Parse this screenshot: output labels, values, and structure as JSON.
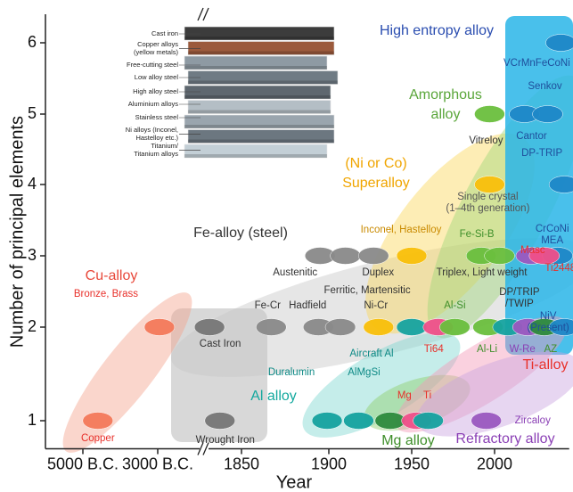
{
  "chart_data": {
    "type": "timeline-bubble",
    "xlabel": "Year",
    "ylabel": "Number of principal elements",
    "xlim": [
      -6000,
      2045
    ],
    "ylim": [
      0.7,
      6.4
    ],
    "xticks": [
      {
        "value": -5000,
        "label": "5000 B.C."
      },
      {
        "value": -3000,
        "label": "3000 B.C."
      },
      1850,
      1900,
      1950,
      2000
    ],
    "yticks": [
      1,
      2,
      3,
      4,
      5,
      6
    ],
    "groups": [
      {
        "name": [
          "Cu-alloy"
        ],
        "color": "#f4a58f",
        "label_color": "#e8483a"
      },
      {
        "name": [
          "Fe-alloy (steel)"
        ],
        "color": "#c8c8c8",
        "label_color": "#333333"
      },
      {
        "name": [
          "(Ni or Co)",
          "Superalloy"
        ],
        "color": "#fbd75a",
        "label_color": "#f0a500"
      },
      {
        "name": [
          "Amorphous",
          "alloy"
        ],
        "color": "#9fd67a",
        "label_color": "#5aa63a"
      },
      {
        "name": [
          "High entropy alloy"
        ],
        "color": "#29b5e8",
        "label_color": "#2a4db0"
      },
      {
        "name": [
          "Al alloy"
        ],
        "color": "#7fd6d0",
        "label_color": "#13a89e"
      },
      {
        "name": [
          "Mg alloy"
        ],
        "color": "#8fcf6a",
        "label_color": "#3f8f2a"
      },
      {
        "name": [
          "Ti-alloy"
        ],
        "color": "#f59ab8",
        "label_color": "#e8302a"
      },
      {
        "name": [
          "Refractory alloy"
        ],
        "color": "#c9a3e0",
        "label_color": "#8a3fb5"
      }
    ],
    "points": [
      {
        "x": -4600,
        "y": 1,
        "color": "#f47a5b",
        "label": "Copper",
        "label_color": "#e8302a"
      },
      {
        "x": -2900,
        "y": 2,
        "color": "#f47a5b",
        "label": "Bronze, Brass",
        "label_color": "#e8302a"
      },
      {
        "x": 0,
        "y": 2,
        "color": "#777777",
        "label": "Cast Iron",
        "label_color": "#333333"
      },
      {
        "x": 600,
        "y": 1,
        "color": "#777777",
        "label": "Wrought Iron",
        "label_color": "#333333"
      },
      {
        "x": 1867,
        "y": 2,
        "color": "#8a8a8a",
        "label": "Fe-Cr",
        "label_color": "#333333"
      },
      {
        "x": 1894,
        "y": 2,
        "color": "#8a8a8a",
        "label": "Hadfield",
        "label_color": "#333333"
      },
      {
        "x": 1907,
        "y": 2,
        "color": "#8a8a8a",
        "label": "Ferritic, Martensitic",
        "label_color": "#333333"
      },
      {
        "x": 1895,
        "y": 3,
        "color": "#8a8a8a",
        "label": "Austenitic",
        "label_color": "#333333"
      },
      {
        "x": 1910,
        "y": 3,
        "color": "#8a8a8a"
      },
      {
        "x": 1927,
        "y": 3,
        "color": "#8a8a8a",
        "label": "Duplex",
        "label_color": "#333333"
      },
      {
        "x": 1930,
        "y": 2,
        "color": "#f9c00b",
        "label": "Ni-Cr",
        "label_color": "#333333"
      },
      {
        "x": 1950,
        "y": 3,
        "color": "#f9c00b",
        "label": "Inconel, Hastelloy",
        "label_color": "#c98a00"
      },
      {
        "x": 1997,
        "y": 4,
        "color": "#f9c00b",
        "label": [
          "Single crystal",
          "(1–4th generation)"
        ],
        "label_color": "#555555"
      },
      {
        "x": 1992,
        "y": 3,
        "color": "#6bbf3e",
        "label": "Fe-Si-B",
        "label_color": "#3f8f2a"
      },
      {
        "x": 2003,
        "y": 3,
        "color": "#6bbf3e",
        "label": "Triplex, Light weight",
        "label_color": "#333333"
      },
      {
        "x": 2022,
        "y": 3,
        "color": "#9b59c0",
        "label": "Masc",
        "label_color": "#e8302a"
      },
      {
        "x": 2038,
        "y": 3,
        "color": "#1e88c8",
        "label": [
          "CrCoNi",
          "MEA"
        ],
        "label_color": "#1f4e9c"
      },
      {
        "x": 2030,
        "y": 3,
        "color": "#f0508a",
        "label": "Ti2448",
        "label_color": "#e8302a"
      },
      {
        "x": 1997,
        "y": 5,
        "color": "#6bbf3e",
        "label": "Vitreloy",
        "label_color": "#333333"
      },
      {
        "x": 2018,
        "y": 5,
        "color": "#1e88c8",
        "label": "Cantor",
        "label_color": "#1f4e9c"
      },
      {
        "x": 2032,
        "y": 5,
        "color": "#1e88c8",
        "label": "Senkov",
        "label_color": "#1f4e9c"
      },
      {
        "x": 2040,
        "y": 6,
        "color": "#1e88c8",
        "label": "VCrMnFeCoNi",
        "label_color": "#1f4e9c"
      },
      {
        "x": 2042,
        "y": 4,
        "color": "#1e88c8",
        "label": "DP-TRIP",
        "label_color": "#1f4e9c"
      },
      {
        "x": 1950,
        "y": 2,
        "color": "#16a3a0",
        "label": "Aircraft Al",
        "label_color": "#0e8a86"
      },
      {
        "x": 1966,
        "y": 2,
        "color": "#f0508a",
        "label": "Ti64",
        "label_color": "#e8302a"
      },
      {
        "x": 1976,
        "y": 2,
        "color": "#6bbf3e",
        "label": "Al-Si",
        "label_color": "#3f8f2a"
      },
      {
        "x": 1996,
        "y": 2,
        "color": "#6bbf3e",
        "label": "Al-Li",
        "label_color": "#3f8f2a"
      },
      {
        "x": 2008,
        "y": 2,
        "color": "#16a3a0",
        "label": [
          "DP/TRIP",
          "/TWIP"
        ],
        "label_color": "#333333"
      },
      {
        "x": 2020,
        "y": 2,
        "color": "#9b59c0",
        "label": "W-Re",
        "label_color": "#8a3fb5"
      },
      {
        "x": 2030,
        "y": 2,
        "color": "#2e8b3e",
        "label": "AZ",
        "label_color": "#3f8f2a"
      },
      {
        "x": 2042,
        "y": 2,
        "color": "#1e88c8",
        "label": [
          "NiV",
          "(Present)"
        ],
        "label_color": "#1f4e9c"
      },
      {
        "x": 1899,
        "y": 1,
        "color": "#16a3a0",
        "label": "Duralumin",
        "label_color": "#0e8a86"
      },
      {
        "x": 1918,
        "y": 1,
        "color": "#16a3a0",
        "label": "AlMgSi",
        "label_color": "#0e8a86"
      },
      {
        "x": 1937,
        "y": 1,
        "color": "#2e8b3e",
        "label": "Mg",
        "label_color": "#e8302a"
      },
      {
        "x": 1953,
        "y": 1,
        "color": "#f0508a",
        "label": "Ti",
        "label_color": "#e8302a"
      },
      {
        "x": 1995,
        "y": 1,
        "color": "#9b59c0",
        "label": "Zircaloy",
        "label_color": "#8a3fb5"
      },
      {
        "x": 1960,
        "y": 1,
        "color": "#16a3a0"
      }
    ],
    "inset_labels": [
      [
        "Cast iron"
      ],
      [
        "Copper alloys",
        "(yellow metals)"
      ],
      [
        "Free-cutting steel"
      ],
      [
        "Low alloy steel"
      ],
      [
        "High alloy steel"
      ],
      [
        "Aluminium alloys"
      ],
      [
        "Stainless steel"
      ],
      [
        "Ni alloys (Inconel,",
        "Hastelloy etc.)"
      ],
      [
        "Titanium/",
        "Titanium alloys"
      ]
    ]
  }
}
